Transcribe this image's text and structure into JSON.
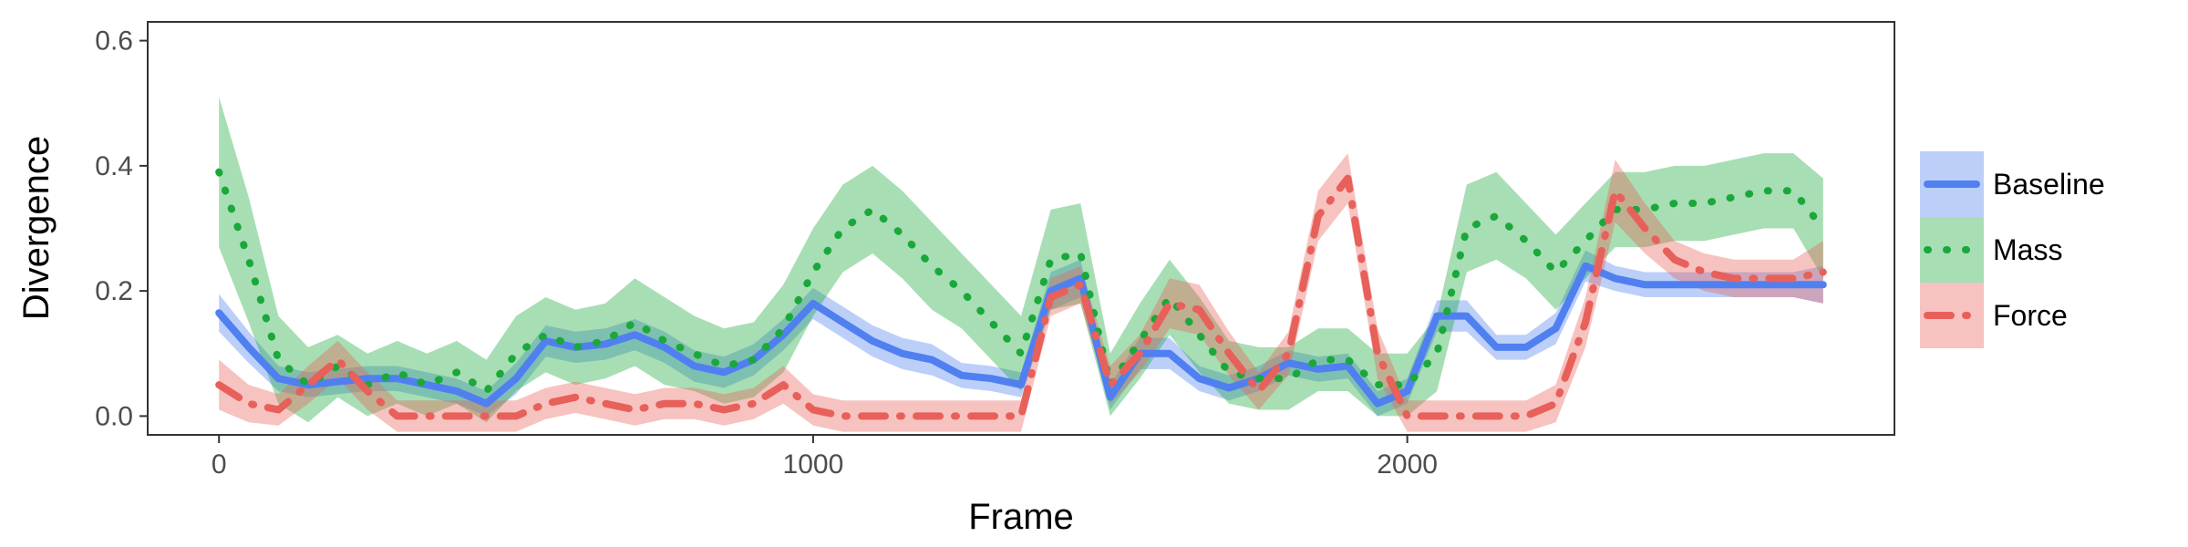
{
  "chart_data": {
    "type": "line",
    "title": "",
    "xlabel": "Frame",
    "ylabel": "Divergence",
    "xlim": [
      -120,
      2820
    ],
    "ylim": [
      -0.03,
      0.63
    ],
    "xticks": [
      0,
      1000,
      2000
    ],
    "xtick_labels": [
      "0",
      "1000",
      "2000"
    ],
    "yticks": [
      0.0,
      0.2,
      0.4,
      0.6
    ],
    "ytick_labels": [
      "0.0",
      "0.2",
      "0.4",
      "0.6"
    ],
    "grid": false,
    "legend_position": "right",
    "colors": {
      "Baseline": "#5080f0",
      "Mass": "#1aa83a",
      "Force": "#e8605a"
    },
    "series": [
      {
        "name": "Baseline",
        "x": [
          0,
          50,
          100,
          150,
          200,
          250,
          300,
          350,
          400,
          450,
          500,
          550,
          600,
          650,
          700,
          750,
          800,
          850,
          900,
          950,
          1000,
          1050,
          1100,
          1150,
          1200,
          1250,
          1300,
          1350,
          1400,
          1450,
          1500,
          1550,
          1600,
          1650,
          1700,
          1750,
          1800,
          1850,
          1900,
          1950,
          2000,
          2050,
          2100,
          2150,
          2200,
          2250,
          2300,
          2350,
          2400,
          2450,
          2500,
          2550,
          2600,
          2650,
          2700
        ],
        "y": [
          0.165,
          0.11,
          0.06,
          0.05,
          0.055,
          0.06,
          0.06,
          0.05,
          0.04,
          0.02,
          0.06,
          0.12,
          0.11,
          0.115,
          0.13,
          0.11,
          0.08,
          0.07,
          0.09,
          0.13,
          0.18,
          0.15,
          0.12,
          0.1,
          0.09,
          0.065,
          0.06,
          0.05,
          0.2,
          0.22,
          0.03,
          0.1,
          0.1,
          0.06,
          0.045,
          0.06,
          0.085,
          0.075,
          0.08,
          0.02,
          0.04,
          0.16,
          0.16,
          0.11,
          0.11,
          0.14,
          0.24,
          0.22,
          0.21,
          0.21,
          0.21,
          0.21,
          0.21,
          0.21,
          0.21
        ],
        "band": [
          0.03,
          0.025,
          0.02,
          0.02,
          0.02,
          0.02,
          0.02,
          0.02,
          0.02,
          0.02,
          0.025,
          0.025,
          0.025,
          0.025,
          0.025,
          0.025,
          0.025,
          0.025,
          0.025,
          0.025,
          0.025,
          0.025,
          0.025,
          0.025,
          0.025,
          0.02,
          0.02,
          0.02,
          0.03,
          0.03,
          0.02,
          0.025,
          0.025,
          0.02,
          0.02,
          0.02,
          0.02,
          0.02,
          0.02,
          0.02,
          0.02,
          0.025,
          0.025,
          0.02,
          0.02,
          0.025,
          0.025,
          0.02,
          0.02,
          0.02,
          0.02,
          0.02,
          0.02,
          0.02,
          0.03
        ]
      },
      {
        "name": "Mass",
        "x": [
          0,
          50,
          100,
          150,
          200,
          250,
          300,
          350,
          400,
          450,
          500,
          550,
          600,
          650,
          700,
          750,
          800,
          850,
          900,
          950,
          1000,
          1050,
          1100,
          1150,
          1200,
          1250,
          1300,
          1350,
          1400,
          1450,
          1500,
          1550,
          1600,
          1650,
          1700,
          1750,
          1800,
          1850,
          1900,
          1950,
          2000,
          2050,
          2100,
          2150,
          2200,
          2250,
          2300,
          2350,
          2400,
          2450,
          2500,
          2550,
          2600,
          2650,
          2700
        ],
        "y": [
          0.39,
          0.25,
          0.09,
          0.05,
          0.08,
          0.05,
          0.07,
          0.05,
          0.07,
          0.04,
          0.1,
          0.13,
          0.11,
          0.12,
          0.15,
          0.12,
          0.1,
          0.08,
          0.09,
          0.14,
          0.23,
          0.3,
          0.33,
          0.29,
          0.24,
          0.2,
          0.15,
          0.1,
          0.25,
          0.26,
          0.05,
          0.12,
          0.19,
          0.13,
          0.07,
          0.06,
          0.06,
          0.09,
          0.09,
          0.05,
          0.05,
          0.1,
          0.3,
          0.32,
          0.28,
          0.23,
          0.28,
          0.33,
          0.33,
          0.34,
          0.34,
          0.35,
          0.36,
          0.36,
          0.3
        ],
        "band": [
          0.12,
          0.1,
          0.07,
          0.06,
          0.05,
          0.05,
          0.05,
          0.05,
          0.05,
          0.05,
          0.06,
          0.06,
          0.06,
          0.06,
          0.07,
          0.07,
          0.06,
          0.06,
          0.06,
          0.07,
          0.07,
          0.07,
          0.07,
          0.07,
          0.07,
          0.06,
          0.06,
          0.06,
          0.08,
          0.08,
          0.05,
          0.06,
          0.06,
          0.06,
          0.05,
          0.05,
          0.05,
          0.05,
          0.05,
          0.05,
          0.05,
          0.06,
          0.07,
          0.07,
          0.06,
          0.06,
          0.06,
          0.06,
          0.06,
          0.06,
          0.06,
          0.06,
          0.06,
          0.06,
          0.08
        ]
      },
      {
        "name": "Force",
        "x": [
          0,
          50,
          100,
          150,
          200,
          250,
          300,
          350,
          400,
          450,
          500,
          550,
          600,
          650,
          700,
          750,
          800,
          850,
          900,
          950,
          1000,
          1050,
          1100,
          1150,
          1200,
          1250,
          1300,
          1350,
          1400,
          1450,
          1500,
          1550,
          1600,
          1650,
          1700,
          1750,
          1800,
          1850,
          1900,
          1950,
          2000,
          2050,
          2100,
          2150,
          2200,
          2250,
          2300,
          2350,
          2400,
          2450,
          2500,
          2550,
          2600,
          2650,
          2700
        ],
        "y": [
          0.05,
          0.02,
          0.01,
          0.05,
          0.09,
          0.04,
          0.0,
          0.0,
          0.0,
          0.0,
          0.0,
          0.02,
          0.03,
          0.02,
          0.01,
          0.02,
          0.02,
          0.01,
          0.02,
          0.05,
          0.01,
          0.0,
          0.0,
          0.0,
          0.0,
          0.0,
          0.0,
          0.0,
          0.19,
          0.21,
          0.05,
          0.1,
          0.18,
          0.17,
          0.1,
          0.04,
          0.1,
          0.32,
          0.38,
          0.1,
          0.0,
          0.0,
          0.0,
          0.0,
          0.0,
          0.02,
          0.15,
          0.36,
          0.3,
          0.25,
          0.23,
          0.22,
          0.22,
          0.22,
          0.23
        ],
        "band": [
          0.04,
          0.03,
          0.025,
          0.03,
          0.03,
          0.03,
          0.025,
          0.025,
          0.025,
          0.025,
          0.025,
          0.025,
          0.025,
          0.025,
          0.025,
          0.025,
          0.025,
          0.025,
          0.025,
          0.03,
          0.025,
          0.025,
          0.025,
          0.025,
          0.025,
          0.025,
          0.025,
          0.025,
          0.03,
          0.03,
          0.03,
          0.03,
          0.04,
          0.04,
          0.035,
          0.03,
          0.035,
          0.04,
          0.04,
          0.04,
          0.025,
          0.025,
          0.025,
          0.025,
          0.025,
          0.03,
          0.04,
          0.05,
          0.04,
          0.03,
          0.03,
          0.03,
          0.03,
          0.03,
          0.05
        ]
      }
    ]
  }
}
